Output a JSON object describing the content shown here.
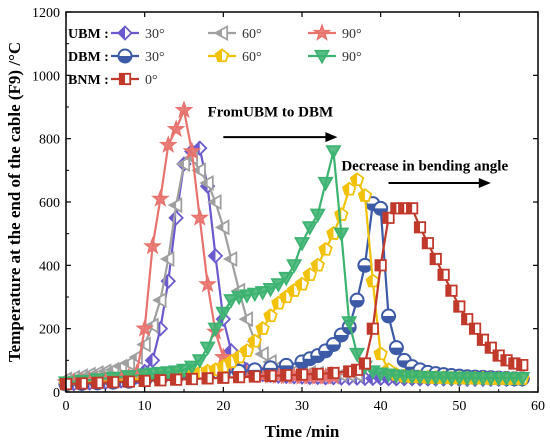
{
  "chart_data": {
    "type": "line",
    "xlabel": "Time /min",
    "ylabel": "Temperature at the end of the cable (F9) /°C",
    "xlim": [
      0,
      60
    ],
    "ylim": [
      0,
      1200
    ],
    "x_ticks": [
      "0",
      "10",
      "20",
      "30",
      "40",
      "50",
      "60"
    ],
    "y_ticks": [
      "0",
      "200",
      "400",
      "600",
      "800",
      "1000",
      "1200"
    ],
    "grid": false,
    "legend_position": "top-left",
    "legend_groups": [
      "UBM :",
      "DBM :",
      "BNM :"
    ],
    "annotations": [
      {
        "text": "FromUBM to DBM",
        "x": 18,
        "y": 870,
        "arrow": "right"
      },
      {
        "text": "Decrease in bending angle",
        "x": 35,
        "y": 700,
        "arrow": "right"
      }
    ],
    "series": [
      {
        "group": "UBM",
        "name": "30°",
        "color": "#6a5acd",
        "marker": "diamond",
        "x": [
          0,
          1,
          2,
          3,
          4,
          5,
          6,
          7,
          8,
          9,
          10,
          11,
          12,
          13,
          14,
          15,
          16,
          17,
          18,
          19,
          20,
          21,
          22,
          23,
          24,
          25,
          26,
          27,
          28,
          29,
          30,
          31,
          32,
          33,
          34,
          35,
          36,
          37,
          38,
          39,
          40,
          41,
          42,
          43,
          44,
          45,
          46,
          47,
          48,
          49,
          50,
          51,
          52,
          53,
          54,
          55,
          56,
          57,
          58
        ],
        "y": [
          25,
          26,
          27,
          28,
          29,
          30,
          32,
          35,
          40,
          48,
          65,
          100,
          200,
          350,
          550,
          720,
          760,
          770,
          650,
          430,
          230,
          130,
          90,
          70,
          60,
          55,
          52,
          50,
          49,
          48,
          47,
          46,
          46,
          45,
          45,
          44,
          44,
          44,
          43,
          43,
          43,
          42,
          42,
          42,
          42,
          41,
          41,
          41,
          41,
          41,
          40,
          40,
          40,
          40,
          40,
          40,
          40,
          40,
          40
        ]
      },
      {
        "group": "UBM",
        "name": "60°",
        "color": "#a0a0a0",
        "marker": "triangle-left",
        "x": [
          0,
          1,
          2,
          3,
          4,
          5,
          6,
          7,
          8,
          9,
          10,
          11,
          12,
          13,
          14,
          15,
          16,
          17,
          18,
          19,
          20,
          21,
          22,
          23,
          24,
          25,
          26,
          27,
          28,
          29,
          30,
          31,
          32,
          33,
          34,
          35,
          36,
          37
        ],
        "y": [
          40,
          45,
          50,
          55,
          60,
          65,
          70,
          80,
          90,
          110,
          150,
          210,
          290,
          420,
          590,
          720,
          740,
          700,
          660,
          600,
          520,
          420,
          320,
          230,
          160,
          120,
          95,
          80,
          70,
          65,
          62,
          60,
          58,
          57,
          56,
          55,
          55,
          55
        ]
      },
      {
        "group": "UBM",
        "name": "90°",
        "color": "#e8736e",
        "marker": "star",
        "x": [
          0,
          1,
          2,
          3,
          4,
          5,
          6,
          7,
          8,
          9,
          10,
          11,
          12,
          13,
          14,
          15,
          16,
          17,
          18,
          19,
          20,
          21,
          22,
          23,
          24,
          25,
          26,
          27,
          28,
          29,
          30,
          31,
          32,
          33,
          34
        ],
        "y": [
          30,
          32,
          33,
          34,
          35,
          36,
          38,
          42,
          48,
          60,
          200,
          460,
          610,
          780,
          830,
          890,
          760,
          550,
          340,
          190,
          110,
          80,
          65,
          58,
          54,
          52,
          51,
          50,
          49,
          49,
          48,
          48,
          48,
          48,
          48
        ]
      },
      {
        "group": "DBM",
        "name": "30°",
        "color": "#3c5aa6",
        "marker": "circle",
        "x": [
          0,
          2,
          4,
          6,
          8,
          10,
          12,
          14,
          16,
          18,
          20,
          22,
          24,
          26,
          28,
          30,
          31,
          32,
          33,
          34,
          35,
          36,
          37,
          38,
          39,
          40,
          41,
          42,
          43,
          44,
          45,
          46,
          47,
          48,
          49,
          50,
          51,
          52,
          53,
          54,
          55,
          56,
          57,
          58
        ],
        "y": [
          25,
          27,
          29,
          31,
          34,
          38,
          42,
          46,
          50,
          55,
          60,
          65,
          70,
          76,
          84,
          95,
          105,
          115,
          130,
          150,
          180,
          205,
          290,
          400,
          595,
          580,
          240,
          140,
          100,
          80,
          70,
          62,
          58,
          55,
          52,
          50,
          48,
          47,
          46,
          45,
          44,
          43,
          42,
          42
        ]
      },
      {
        "group": "DBM",
        "name": "60°",
        "color": "#f2c20a",
        "marker": "pentagon",
        "x": [
          0,
          2,
          4,
          6,
          8,
          10,
          12,
          14,
          16,
          17,
          18,
          19,
          20,
          21,
          22,
          23,
          24,
          25,
          26,
          27,
          28,
          29,
          30,
          31,
          32,
          33,
          34,
          35,
          36,
          37,
          38,
          39,
          40,
          41,
          42,
          43,
          44,
          45,
          46,
          47,
          48,
          49,
          50,
          51,
          52,
          53,
          54,
          55,
          56,
          57,
          58
        ],
        "y": [
          25,
          28,
          31,
          34,
          38,
          42,
          46,
          50,
          55,
          60,
          65,
          70,
          80,
          95,
          110,
          130,
          160,
          200,
          240,
          280,
          300,
          320,
          340,
          370,
          400,
          450,
          500,
          560,
          640,
          670,
          620,
          350,
          120,
          70,
          55,
          50,
          48,
          47,
          46,
          45,
          45,
          44,
          44,
          43,
          43,
          43,
          42,
          42,
          42,
          42,
          42
        ]
      },
      {
        "group": "DBM",
        "name": "90°",
        "color": "#3cb371",
        "marker": "triangle-down",
        "x": [
          0,
          2,
          4,
          6,
          8,
          10,
          11,
          12,
          13,
          14,
          15,
          16,
          17,
          18,
          19,
          20,
          21,
          22,
          23,
          24,
          25,
          26,
          27,
          28,
          29,
          30,
          31,
          32,
          33,
          34,
          35,
          36,
          37,
          38,
          39,
          40,
          41,
          42,
          43,
          44,
          45,
          46,
          47,
          48,
          49,
          50,
          51,
          52,
          53,
          54,
          55,
          56,
          57,
          58
        ],
        "y": [
          30,
          35,
          40,
          45,
          50,
          55,
          58,
          60,
          62,
          65,
          70,
          80,
          100,
          140,
          200,
          250,
          290,
          300,
          305,
          310,
          315,
          325,
          340,
          360,
          400,
          470,
          520,
          560,
          660,
          760,
          500,
          220,
          120,
          80,
          65,
          58,
          55,
          52,
          50,
          49,
          48,
          47,
          46,
          46,
          45,
          45,
          45,
          44,
          44,
          44,
          44,
          44,
          44,
          44
        ]
      },
      {
        "group": "BNM",
        "name": "0°",
        "color": "#c0392b",
        "marker": "square",
        "x": [
          0,
          2,
          4,
          6,
          8,
          10,
          12,
          14,
          16,
          18,
          20,
          22,
          24,
          26,
          28,
          30,
          32,
          34,
          36,
          37,
          38,
          39,
          40,
          41,
          42,
          43,
          44,
          45,
          46,
          47,
          48,
          49,
          50,
          51,
          52,
          53,
          54,
          55,
          56,
          57,
          58
        ],
        "y": [
          25,
          27,
          29,
          31,
          33,
          35,
          37,
          39,
          41,
          43,
          45,
          47,
          49,
          51,
          53,
          55,
          57,
          60,
          65,
          70,
          90,
          200,
          400,
          550,
          580,
          580,
          580,
          520,
          470,
          420,
          370,
          320,
          270,
          230,
          200,
          165,
          140,
          115,
          100,
          90,
          85
        ]
      }
    ]
  }
}
